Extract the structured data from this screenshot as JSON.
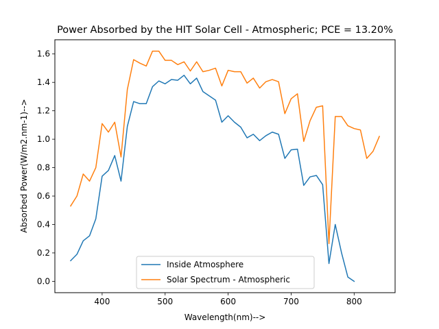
{
  "chart_data": {
    "type": "line",
    "title": "Power Absorbed by the HIT Solar Cell - Atmospheric; PCE = 13.20%",
    "xlabel": "Wavelength(nm)-->",
    "ylabel": "Absorbed Power(W/m2.nm-1)-->",
    "xlim": [
      325,
      865
    ],
    "ylim": [
      -0.08,
      1.7
    ],
    "xticks": [
      400,
      500,
      600,
      700,
      800
    ],
    "yticks": [
      0.0,
      0.2,
      0.4,
      0.6,
      0.8,
      1.0,
      1.2,
      1.4,
      1.6
    ],
    "xtick_labels": [
      "400",
      "500",
      "600",
      "700",
      "800"
    ],
    "ytick_labels": [
      "0.0",
      "0.2",
      "0.4",
      "0.6",
      "0.8",
      "1.0",
      "1.2",
      "1.4",
      "1.6"
    ],
    "grid": false,
    "legend_position": "lower center",
    "series": [
      {
        "name": "Inside Atmosphere",
        "color": "#1f77b4",
        "x": [
          350,
          360,
          370,
          380,
          390,
          400,
          410,
          420,
          430,
          440,
          450,
          460,
          470,
          480,
          490,
          500,
          510,
          520,
          530,
          540,
          550,
          560,
          570,
          580,
          590,
          600,
          610,
          620,
          630,
          640,
          650,
          660,
          670,
          680,
          690,
          700,
          710,
          720,
          730,
          740,
          750,
          760,
          770,
          780,
          790,
          800
        ],
        "y": [
          0.145,
          0.19,
          0.285,
          0.32,
          0.44,
          0.74,
          0.78,
          0.885,
          0.705,
          1.09,
          1.265,
          1.25,
          1.25,
          1.37,
          1.41,
          1.39,
          1.42,
          1.415,
          1.45,
          1.39,
          1.43,
          1.335,
          1.305,
          1.275,
          1.12,
          1.165,
          1.12,
          1.085,
          1.01,
          1.035,
          0.99,
          1.025,
          1.05,
          1.035,
          0.865,
          0.925,
          0.93,
          0.675,
          0.735,
          0.745,
          0.68,
          0.125,
          0.4,
          0.2,
          0.03,
          0.0
        ]
      },
      {
        "name": "Solar Spectrum - Atmospheric",
        "color": "#ff7f0e",
        "x": [
          350,
          360,
          370,
          380,
          390,
          400,
          410,
          420,
          430,
          440,
          450,
          460,
          470,
          480,
          490,
          500,
          510,
          520,
          530,
          540,
          550,
          560,
          570,
          580,
          590,
          600,
          610,
          620,
          630,
          640,
          650,
          660,
          670,
          680,
          690,
          700,
          710,
          720,
          730,
          740,
          750,
          760,
          770,
          780,
          790,
          800,
          810,
          820,
          830,
          840
        ],
        "y": [
          0.53,
          0.6,
          0.755,
          0.705,
          0.8,
          1.11,
          1.05,
          1.12,
          0.875,
          1.35,
          1.56,
          1.535,
          1.515,
          1.62,
          1.62,
          1.555,
          1.555,
          1.525,
          1.545,
          1.48,
          1.545,
          1.475,
          1.485,
          1.5,
          1.375,
          1.485,
          1.475,
          1.475,
          1.395,
          1.43,
          1.36,
          1.405,
          1.42,
          1.405,
          1.18,
          1.285,
          1.32,
          0.985,
          1.13,
          1.225,
          1.235,
          0.265,
          1.16,
          1.16,
          1.095,
          1.075,
          1.065,
          0.865,
          0.915,
          1.02
        ]
      }
    ]
  }
}
